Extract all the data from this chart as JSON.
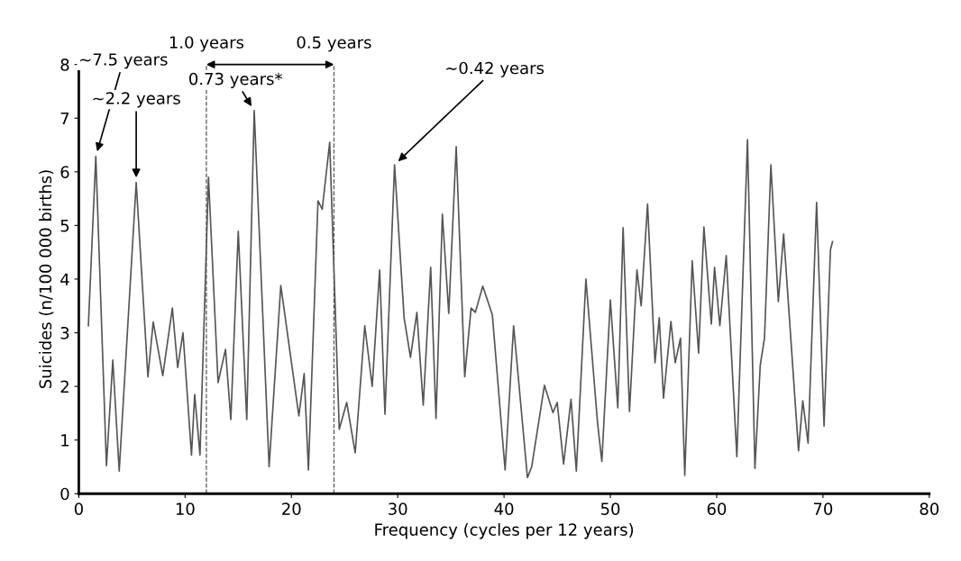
{
  "chart_data": {
    "type": "line",
    "xlabel": "Frequency (cycles per 12 years)",
    "ylabel": "Suicides (n/100 000 births)",
    "xlim": [
      0,
      80
    ],
    "xticks": [
      0,
      10,
      20,
      30,
      40,
      50,
      60,
      70,
      80
    ],
    "ylim": [
      0,
      8
    ],
    "yticks": [
      0,
      1,
      2,
      3,
      4,
      5,
      6,
      7,
      8
    ],
    "grid": false,
    "marker": "none",
    "line_style": "solid",
    "series": [
      {
        "color": "#555555",
        "x": [
          0.9,
          1.6,
          2.6,
          3.2,
          3.8,
          5.4,
          6.5,
          7.0,
          7.9,
          8.8,
          9.3,
          9.8,
          10.6,
          10.9,
          11.4,
          12.2,
          13.1,
          13.8,
          14.3,
          15.0,
          15.8,
          16.5,
          17.9,
          19.0,
          20.7,
          21.2,
          21.6,
          22.5,
          22.9,
          23.6,
          24.5,
          25.2,
          26.0,
          26.9,
          27.6,
          28.3,
          28.8,
          29.7,
          30.6,
          31.2,
          31.8,
          32.4,
          33.1,
          33.6,
          34.2,
          34.8,
          35.5,
          36.3,
          36.9,
          37.3,
          38.0,
          38.9,
          40.1,
          40.9,
          42.2,
          42.6,
          43.8,
          44.6,
          45.0,
          45.6,
          46.3,
          46.8,
          47.7,
          48.8,
          49.2,
          50.0,
          50.7,
          51.2,
          51.8,
          52.5,
          52.9,
          53.5,
          54.2,
          54.6,
          55.0,
          55.7,
          56.1,
          56.6,
          57.0,
          57.7,
          58.3,
          58.8,
          59.5,
          59.8,
          60.3,
          60.9,
          61.9,
          62.9,
          63.6,
          64.1,
          64.5,
          65.1,
          65.8,
          66.3,
          67.7,
          68.1,
          68.6,
          69.4,
          70.1,
          70.7,
          70.9
        ],
        "values": [
          3.13,
          6.29,
          0.52,
          2.49,
          0.42,
          5.8,
          2.18,
          3.2,
          2.2,
          3.46,
          2.35,
          3.0,
          0.72,
          1.85,
          0.72,
          5.9,
          2.07,
          2.69,
          1.38,
          4.89,
          1.38,
          7.14,
          0.5,
          3.88,
          1.45,
          2.24,
          0.44,
          5.46,
          5.3,
          6.55,
          1.2,
          1.7,
          0.76,
          3.13,
          2.0,
          4.17,
          1.48,
          6.13,
          3.28,
          2.54,
          3.38,
          1.65,
          4.22,
          1.4,
          5.21,
          3.36,
          6.47,
          2.18,
          3.46,
          3.38,
          3.87,
          3.33,
          0.44,
          3.13,
          0.3,
          0.5,
          2.02,
          1.51,
          1.7,
          0.55,
          1.76,
          0.42,
          4.0,
          1.31,
          0.6,
          3.61,
          1.6,
          4.96,
          1.53,
          4.17,
          3.5,
          5.4,
          2.44,
          3.28,
          1.78,
          3.21,
          2.44,
          2.9,
          0.34,
          4.34,
          2.62,
          4.97,
          3.16,
          4.22,
          3.13,
          4.44,
          0.69,
          6.6,
          0.47,
          2.4,
          2.9,
          6.13,
          3.58,
          4.84,
          0.8,
          1.73,
          0.94,
          5.43,
          1.26,
          4.54,
          4.7
        ]
      }
    ],
    "ref_lines": [
      {
        "axis": "x",
        "value": 12,
        "label": "1.0 years",
        "line_style": "dashed",
        "color": "#555555"
      },
      {
        "axis": "x",
        "value": 24,
        "label": "0.5 years",
        "line_style": "dashed",
        "color": "#555555"
      }
    ],
    "annotations": [
      {
        "text": "~7.5 years",
        "x": 1.6,
        "y": 6.29
      },
      {
        "text": "~2.2 years",
        "x": 5.4,
        "y": 5.8
      },
      {
        "text": "0.73 years*",
        "x": 16.5,
        "y": 7.14
      },
      {
        "text": "~0.42 years",
        "x": 29.7,
        "y": 6.13
      }
    ]
  }
}
